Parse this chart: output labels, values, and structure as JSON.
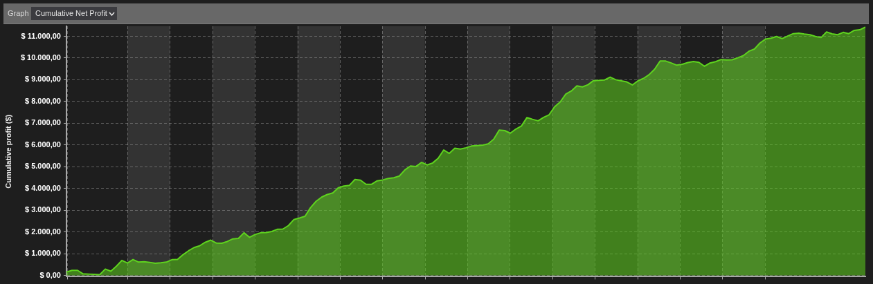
{
  "chart_data": {
    "type": "area",
    "title": "Cumulative Net Profit",
    "annotations": [
      "Graph"
    ],
    "ylabel": "Cumulative profit ($)",
    "categories": [
      null,
      null,
      null,
      null,
      null,
      null,
      null,
      null,
      null,
      null,
      null,
      null,
      null,
      null,
      null,
      null,
      null,
      null,
      null,
      null,
      null,
      null,
      null,
      null,
      null,
      null,
      null,
      null,
      null,
      null,
      null,
      null,
      null,
      null,
      null,
      null,
      null,
      null,
      null,
      null,
      null,
      null,
      null,
      null,
      null,
      null,
      null,
      null,
      null,
      null,
      null,
      null,
      null,
      null,
      null,
      null,
      null,
      null,
      null,
      null,
      null,
      null,
      null,
      null,
      null,
      null,
      null,
      null,
      null,
      null,
      null,
      null,
      null,
      null,
      null,
      null,
      null,
      null,
      null,
      null,
      null,
      null,
      null,
      null,
      null,
      null,
      null,
      null,
      null,
      null,
      null,
      null,
      null,
      null,
      null,
      null,
      null,
      null,
      null,
      null,
      null,
      null,
      null,
      null,
      null,
      null,
      null,
      null,
      null,
      null,
      null,
      null,
      null,
      null,
      null,
      null,
      null,
      null,
      null,
      null,
      null,
      null,
      null,
      null,
      null,
      null,
      null,
      null,
      null,
      null,
      null,
      null,
      null,
      null,
      null,
      null,
      null,
      null,
      null,
      null,
      null,
      null,
      null,
      null,
      null
    ],
    "values": [
      150,
      230,
      230,
      70,
      60,
      50,
      30,
      290,
      190,
      420,
      690,
      570,
      730,
      610,
      630,
      600,
      560,
      580,
      610,
      720,
      730,
      950,
      1130,
      1280,
      1360,
      1520,
      1620,
      1490,
      1480,
      1560,
      1680,
      1700,
      1960,
      1750,
      1880,
      1960,
      1970,
      2020,
      2120,
      2130,
      2290,
      2570,
      2640,
      2720,
      3120,
      3410,
      3600,
      3720,
      3790,
      4030,
      4110,
      4140,
      4410,
      4380,
      4190,
      4190,
      4350,
      4390,
      4460,
      4490,
      4570,
      4850,
      5030,
      5010,
      5200,
      5080,
      5170,
      5390,
      5770,
      5610,
      5850,
      5810,
      5870,
      5950,
      5970,
      5990,
      6050,
      6260,
      6680,
      6660,
      6540,
      6730,
      6870,
      7260,
      7180,
      7110,
      7270,
      7390,
      7760,
      7980,
      8340,
      8480,
      8720,
      8670,
      8770,
      8960,
      8970,
      8990,
      9120,
      9000,
      8950,
      8900,
      8760,
      8950,
      9060,
      9230,
      9480,
      9860,
      9860,
      9770,
      9670,
      9710,
      9790,
      9840,
      9800,
      9620,
      9770,
      9830,
      9930,
      9910,
      9920,
      10010,
      10110,
      10310,
      10410,
      10690,
      10870,
      10910,
      10990,
      10890,
      11010,
      11120,
      11140,
      11100,
      11070,
      10990,
      10940,
      11200,
      11110,
      11070,
      11180,
      11120,
      11270,
      11300,
      11420
    ],
    "color": "#5ed21e",
    "ylim": [
      -60,
      11460
    ],
    "yticks": [
      {
        "value": 0,
        "label": "$ 0,00"
      },
      {
        "value": 1000,
        "label": "$ 1.000,00"
      },
      {
        "value": 2000,
        "label": "$ 2.000,00"
      },
      {
        "value": 3000,
        "label": "$ 3.000,00"
      },
      {
        "value": 4000,
        "label": "$ 4.000,00"
      },
      {
        "value": 5000,
        "label": "$ 5.000,00"
      },
      {
        "value": 6000,
        "label": "$ 6.000,00"
      },
      {
        "value": 7000,
        "label": "$ 7.000,00"
      },
      {
        "value": 8000,
        "label": "$ 8.000,00"
      },
      {
        "value": 9000,
        "label": "$ 9.000,00"
      },
      {
        "value": 10000,
        "label": "$ 10.000,00"
      },
      {
        "value": 11000,
        "label": "$ 11.000,00"
      }
    ],
    "grid": true
  }
}
